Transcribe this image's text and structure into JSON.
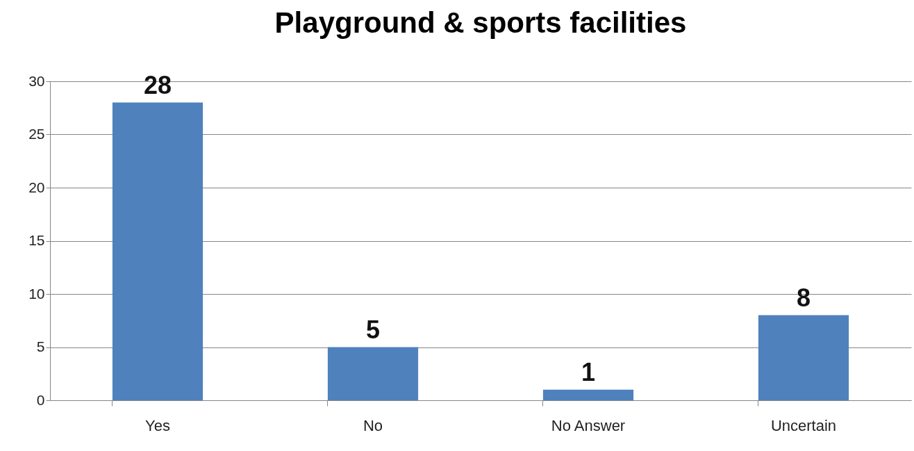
{
  "chart_data": {
    "type": "bar",
    "title": "Playground & sports facilities",
    "categories": [
      "Yes",
      "No",
      "No Answer",
      "Uncertain"
    ],
    "values": [
      28,
      5,
      1,
      8
    ],
    "color": "#4f81bd",
    "ylim": [
      0,
      30
    ],
    "yticks": [
      0,
      5,
      10,
      15,
      20,
      25,
      30
    ],
    "grid": "y",
    "data_labels": true
  }
}
